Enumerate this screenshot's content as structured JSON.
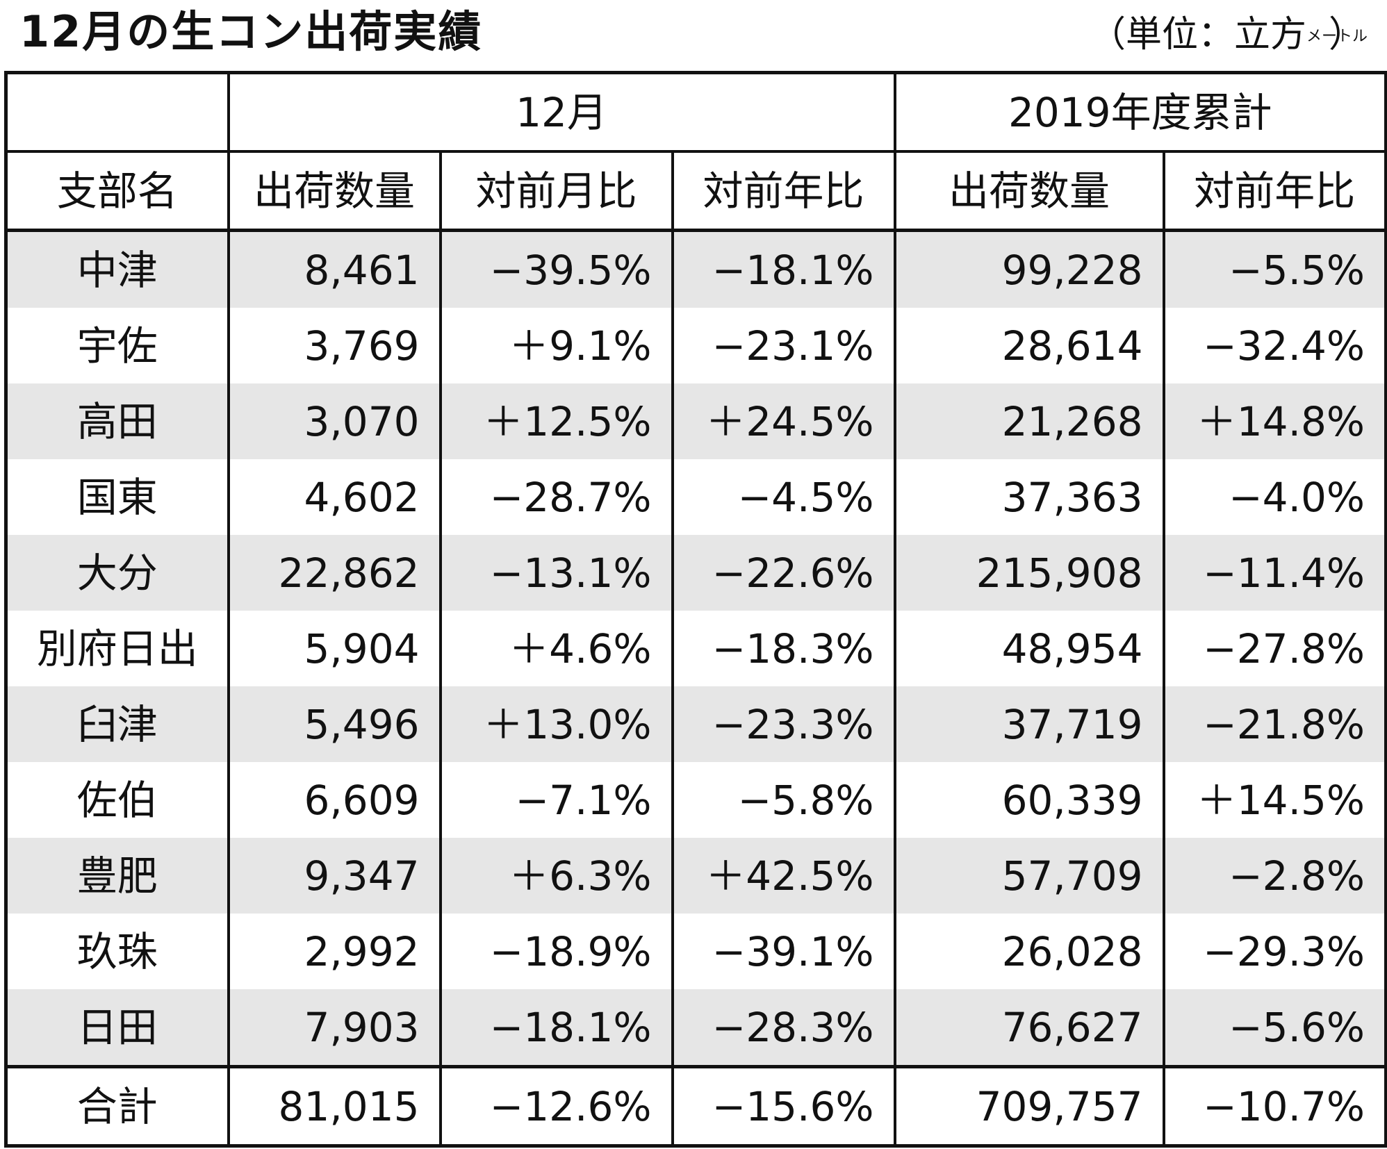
{
  "title": "12月の生コン出荷実績",
  "unit_prefix": "（単位：立方",
  "unit_meter": "メートル",
  "unit_suffix": "）",
  "header": {
    "group_month": "12月",
    "group_cumulative": "2019年度累計",
    "col_branch": "支部名",
    "col_shipments": "出荷数量",
    "col_mom": "対前月比",
    "col_yoy": "対前年比",
    "col_cum_shipments": "出荷数量",
    "col_cum_yoy": "対前年比"
  },
  "rows": [
    {
      "branch": "中津",
      "shipments": "8,461",
      "mom": "−39.5%",
      "yoy": "−18.1%",
      "cum_shipments": "99,228",
      "cum_yoy": "−5.5%"
    },
    {
      "branch": "宇佐",
      "shipments": "3,769",
      "mom": "＋9.1%",
      "yoy": "−23.1%",
      "cum_shipments": "28,614",
      "cum_yoy": "−32.4%"
    },
    {
      "branch": "高田",
      "shipments": "3,070",
      "mom": "＋12.5%",
      "yoy": "＋24.5%",
      "cum_shipments": "21,268",
      "cum_yoy": "＋14.8%"
    },
    {
      "branch": "国東",
      "shipments": "4,602",
      "mom": "−28.7%",
      "yoy": "−4.5%",
      "cum_shipments": "37,363",
      "cum_yoy": "−4.0%"
    },
    {
      "branch": "大分",
      "shipments": "22,862",
      "mom": "−13.1%",
      "yoy": "−22.6%",
      "cum_shipments": "215,908",
      "cum_yoy": "−11.4%"
    },
    {
      "branch": "別府日出",
      "shipments": "5,904",
      "mom": "＋4.6%",
      "yoy": "−18.3%",
      "cum_shipments": "48,954",
      "cum_yoy": "−27.8%"
    },
    {
      "branch": "臼津",
      "shipments": "5,496",
      "mom": "＋13.0%",
      "yoy": "−23.3%",
      "cum_shipments": "37,719",
      "cum_yoy": "−21.8%"
    },
    {
      "branch": "佐伯",
      "shipments": "6,609",
      "mom": "−7.1%",
      "yoy": "−5.8%",
      "cum_shipments": "60,339",
      "cum_yoy": "＋14.5%"
    },
    {
      "branch": "豊肥",
      "shipments": "9,347",
      "mom": "＋6.3%",
      "yoy": "＋42.5%",
      "cum_shipments": "57,709",
      "cum_yoy": "−2.8%"
    },
    {
      "branch": "玖珠",
      "shipments": "2,992",
      "mom": "−18.9%",
      "yoy": "−39.1%",
      "cum_shipments": "26,028",
      "cum_yoy": "−29.3%"
    },
    {
      "branch": "日田",
      "shipments": "7,903",
      "mom": "−18.1%",
      "yoy": "−28.3%",
      "cum_shipments": "76,627",
      "cum_yoy": "−5.6%"
    }
  ],
  "total": {
    "branch": "合計",
    "shipments": "81,015",
    "mom": "−12.6%",
    "yoy": "−15.6%",
    "cum_shipments": "709,757",
    "cum_yoy": "−10.7%"
  },
  "colors": {
    "stripe": "#e6e6e6",
    "rule": "#111111"
  }
}
